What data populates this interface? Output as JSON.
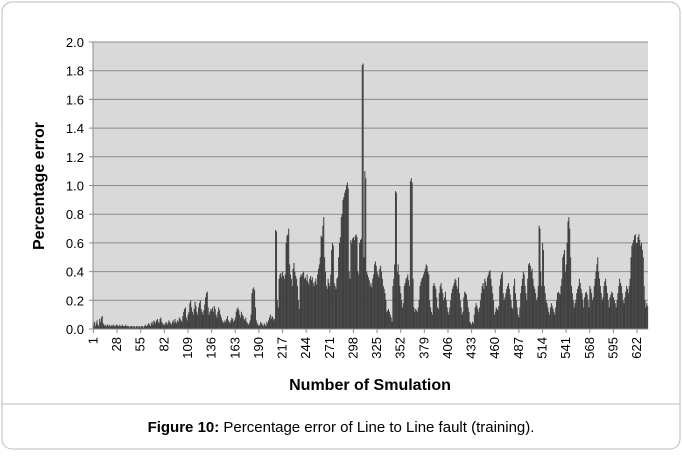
{
  "chart_data": {
    "type": "bar",
    "y_label": "Percentage error",
    "x_label": "Number of Smulation",
    "caption_bold": "Figure 10:",
    "caption": "Percentage error of Line to Line fault (training).",
    "color": "#404040",
    "ylim": [
      0,
      2
    ],
    "yticks": [
      {
        "value": 0,
        "label": "0.0"
      },
      0.2,
      0.4,
      0.6,
      0.8,
      {
        "value": 1,
        "label": "1.0"
      },
      1.2,
      1.4,
      1.6,
      1.8,
      {
        "value": 2,
        "label": "2.0"
      }
    ],
    "grid": true,
    "categories": [
      "1",
      null,
      null,
      null,
      null,
      null,
      null,
      null,
      null,
      null,
      null,
      null,
      null,
      null,
      null,
      null,
      null,
      null,
      null,
      null,
      null,
      null,
      null,
      null,
      null,
      null,
      null,
      "28",
      null,
      null,
      null,
      null,
      null,
      null,
      null,
      null,
      null,
      null,
      null,
      null,
      null,
      null,
      null,
      null,
      null,
      null,
      null,
      null,
      null,
      null,
      null,
      null,
      null,
      null,
      "55",
      null,
      null,
      null,
      null,
      null,
      null,
      null,
      null,
      null,
      null,
      null,
      null,
      null,
      null,
      null,
      null,
      null,
      null,
      null,
      null,
      null,
      null,
      null,
      null,
      null,
      null,
      "82",
      null,
      null,
      null,
      null,
      null,
      null,
      null,
      null,
      null,
      null,
      null,
      null,
      null,
      null,
      null,
      null,
      null,
      null,
      null,
      null,
      null,
      null,
      null,
      null,
      null,
      null,
      "109",
      null,
      null,
      null,
      null,
      null,
      null,
      null,
      null,
      null,
      null,
      null,
      null,
      null,
      null,
      null,
      null,
      null,
      null,
      null,
      null,
      null,
      null,
      null,
      null,
      null,
      null,
      "136",
      null,
      null,
      null,
      null,
      null,
      null,
      null,
      null,
      null,
      null,
      null,
      null,
      null,
      null,
      null,
      null,
      null,
      null,
      null,
      null,
      null,
      null,
      null,
      null,
      null,
      null,
      "163",
      null,
      null,
      null,
      null,
      null,
      null,
      null,
      null,
      null,
      null,
      null,
      null,
      null,
      null,
      null,
      null,
      null,
      null,
      null,
      null,
      null,
      null,
      null,
      null,
      null,
      null,
      "190",
      null,
      null,
      null,
      null,
      null,
      null,
      null,
      null,
      null,
      null,
      null,
      null,
      null,
      null,
      null,
      null,
      null,
      null,
      null,
      null,
      null,
      null,
      null,
      null,
      null,
      null,
      "217",
      null,
      null,
      null,
      null,
      null,
      null,
      null,
      null,
      null,
      null,
      null,
      null,
      null,
      null,
      null,
      null,
      null,
      null,
      null,
      null,
      null,
      null,
      null,
      null,
      null,
      null,
      "244",
      null,
      null,
      null,
      null,
      null,
      null,
      null,
      null,
      null,
      null,
      null,
      null,
      null,
      null,
      null,
      null,
      null,
      null,
      null,
      null,
      null,
      null,
      null,
      null,
      null,
      null,
      "271",
      null,
      null,
      null,
      null,
      null,
      null,
      null,
      null,
      null,
      null,
      null,
      null,
      null,
      null,
      null,
      null,
      null,
      null,
      null,
      null,
      null,
      null,
      null,
      null,
      null,
      null,
      "298",
      null,
      null,
      null,
      null,
      null,
      null,
      null,
      null,
      null,
      null,
      null,
      null,
      null,
      null,
      null,
      null,
      null,
      null,
      null,
      null,
      null,
      null,
      null,
      null,
      null,
      null,
      "325",
      null,
      null,
      null,
      null,
      null,
      null,
      null,
      null,
      null,
      null,
      null,
      null,
      null,
      null,
      null,
      null,
      null,
      null,
      null,
      null,
      null,
      null,
      null,
      null,
      null,
      null,
      "352",
      null,
      null,
      null,
      null,
      null,
      null,
      null,
      null,
      null,
      null,
      null,
      null,
      null,
      null,
      null,
      null,
      null,
      null,
      null,
      null,
      null,
      null,
      null,
      null,
      null,
      null,
      "379",
      null,
      null,
      null,
      null,
      null,
      null,
      null,
      null,
      null,
      null,
      null,
      null,
      null,
      null,
      null,
      null,
      null,
      null,
      null,
      null,
      null,
      null,
      null,
      null,
      null,
      null,
      "406",
      null,
      null,
      null,
      null,
      null,
      null,
      null,
      null,
      null,
      null,
      null,
      null,
      null,
      null,
      null,
      null,
      null,
      null,
      null,
      null,
      null,
      null,
      null,
      null,
      null,
      null,
      "433",
      null,
      null,
      null,
      null,
      null,
      null,
      null,
      null,
      null,
      null,
      null,
      null,
      null,
      null,
      null,
      null,
      null,
      null,
      null,
      null,
      null,
      null,
      null,
      null,
      null,
      null,
      "460",
      null,
      null,
      null,
      null,
      null,
      null,
      null,
      null,
      null,
      null,
      null,
      null,
      null,
      null,
      null,
      null,
      null,
      null,
      null,
      null,
      null,
      null,
      null,
      null,
      null,
      null,
      "487",
      null,
      null,
      null,
      null,
      null,
      null,
      null,
      null,
      null,
      null,
      null,
      null,
      null,
      null,
      null,
      null,
      null,
      null,
      null,
      null,
      null,
      null,
      null,
      null,
      null,
      null,
      "514",
      null,
      null,
      null,
      null,
      null,
      null,
      null,
      null,
      null,
      null,
      null,
      null,
      null,
      null,
      null,
      null,
      null,
      null,
      null,
      null,
      null,
      null,
      null,
      null,
      null,
      null,
      "541",
      null,
      null,
      null,
      null,
      null,
      null,
      null,
      null,
      null,
      null,
      null,
      null,
      null,
      null,
      null,
      null,
      null,
      null,
      null,
      null,
      null,
      null,
      null,
      null,
      null,
      null,
      "568",
      null,
      null,
      null,
      null,
      null,
      null,
      null,
      null,
      null,
      null,
      null,
      null,
      null,
      null,
      null,
      null,
      null,
      null,
      null,
      null,
      null,
      null,
      null,
      null,
      null,
      null,
      "595",
      null,
      null,
      null,
      null,
      null,
      null,
      null,
      null,
      null,
      null,
      null,
      null,
      null,
      null,
      null,
      null,
      null,
      null,
      null,
      null,
      null,
      null,
      null,
      null,
      null,
      null,
      "622",
      null,
      null,
      null,
      null,
      null,
      null,
      null,
      null,
      null,
      null,
      null,
      null
    ],
    "values": [
      0.03,
      0.05,
      0.02,
      0.04,
      0.06,
      0.03,
      0.02,
      0.07,
      0.05,
      0.08,
      0.09,
      0.04,
      0.03,
      0.02,
      0.03,
      0.02,
      0.03,
      0.02,
      0.03,
      0.02,
      0.02,
      0.03,
      0.02,
      0.03,
      0.02,
      0.02,
      0.03,
      0.03,
      0.02,
      0.02,
      0.03,
      0.02,
      0.02,
      0.03,
      0.02,
      0.02,
      0.02,
      0.03,
      0.02,
      0.02,
      0.02,
      0.01,
      0.02,
      0.02,
      0.02,
      0.01,
      0.02,
      0.02,
      0.01,
      0.02,
      0.02,
      0.01,
      0.02,
      0.02,
      0.01,
      0.02,
      0.02,
      0.01,
      0.02,
      0.03,
      0.02,
      0.02,
      0.03,
      0.04,
      0.03,
      0.02,
      0.04,
      0.05,
      0.03,
      0.06,
      0.05,
      0.04,
      0.06,
      0.07,
      0.05,
      0.04,
      0.07,
      0.08,
      0.05,
      0.04,
      0.03,
      0.03,
      0.04,
      0.05,
      0.03,
      0.04,
      0.06,
      0.05,
      0.04,
      0.03,
      0.05,
      0.06,
      0.04,
      0.07,
      0.05,
      0.04,
      0.06,
      0.05,
      0.08,
      0.07,
      0.06,
      0.05,
      0.09,
      0.12,
      0.14,
      0.15,
      0.08,
      0.06,
      0.1,
      0.12,
      0.18,
      0.2,
      0.15,
      0.12,
      0.1,
      0.14,
      0.19,
      0.16,
      0.12,
      0.1,
      0.15,
      0.18,
      0.2,
      0.14,
      0.12,
      0.1,
      0.13,
      0.17,
      0.22,
      0.25,
      0.26,
      0.15,
      0.1,
      0.12,
      0.14,
      0.13,
      0.15,
      0.12,
      0.16,
      0.14,
      0.1,
      0.08,
      0.12,
      0.15,
      0.13,
      0.1,
      0.08,
      0.06,
      0.05,
      0.04,
      0.06,
      0.05,
      0.07,
      0.09,
      0.06,
      0.05,
      0.04,
      0.06,
      0.08,
      0.07,
      0.05,
      0.06,
      0.08,
      0.12,
      0.14,
      0.15,
      0.13,
      0.1,
      0.08,
      0.12,
      0.1,
      0.09,
      0.07,
      0.06,
      0.08,
      0.05,
      0.04,
      0.03,
      0.04,
      0.06,
      0.1,
      0.25,
      0.28,
      0.29,
      0.27,
      0.15,
      0.06,
      0.04,
      0.03,
      0.02,
      0.03,
      0.05,
      0.04,
      0.03,
      0.02,
      0.04,
      0.03,
      0.02,
      0.05,
      0.04,
      0.06,
      0.08,
      0.1,
      0.07,
      0.09,
      0.08,
      0.06,
      0.07,
      0.69,
      0.68,
      0.2,
      0.15,
      0.35,
      0.38,
      0.39,
      0.36,
      0.4,
      0.37,
      0.35,
      0.38,
      0.6,
      0.65,
      0.66,
      0.7,
      0.45,
      0.38,
      0.35,
      0.3,
      0.42,
      0.46,
      0.4,
      0.37,
      0.35,
      0.3,
      0.2,
      0.14,
      0.36,
      0.38,
      0.37,
      0.39,
      0.4,
      0.35,
      0.36,
      0.34,
      0.38,
      0.33,
      0.31,
      0.35,
      0.37,
      0.34,
      0.36,
      0.32,
      0.3,
      0.33,
      0.35,
      0.31,
      0.38,
      0.42,
      0.45,
      0.5,
      0.65,
      0.64,
      0.72,
      0.78,
      0.5,
      0.4,
      0.3,
      0.28,
      0.35,
      0.32,
      0.3,
      0.38,
      0.55,
      0.6,
      0.58,
      0.32,
      0.3,
      0.28,
      0.35,
      0.36,
      0.5,
      0.6,
      0.64,
      0.78,
      0.8,
      0.9,
      0.92,
      0.95,
      0.97,
      1.0,
      1.02,
      0.98,
      0.4,
      0.35,
      0.62,
      0.6,
      0.63,
      0.64,
      0.62,
      0.65,
      0.66,
      0.64,
      0.4,
      0.38,
      0.6,
      0.62,
      0.63,
      1.84,
      1.85,
      0.5,
      1.1,
      1.05,
      0.4,
      0.38,
      0.36,
      0.34,
      0.3,
      0.32,
      0.29,
      0.35,
      0.38,
      0.45,
      0.47,
      0.44,
      0.4,
      0.38,
      0.36,
      0.42,
      0.44,
      0.4,
      0.35,
      0.3,
      0.28,
      0.25,
      0.2,
      0.12,
      0.13,
      0.14,
      0.12,
      0.1,
      0.08,
      0.05,
      0.3,
      0.35,
      0.45,
      0.96,
      0.95,
      0.4,
      0.45,
      0.38,
      0.3,
      0.25,
      0.2,
      0.15,
      0.18,
      0.3,
      0.32,
      0.35,
      0.36,
      0.38,
      0.34,
      0.3,
      1.03,
      1.05,
      1.02,
      0.35,
      0.15,
      0.12,
      0.14,
      0.13,
      0.12,
      0.15,
      0.2,
      0.3,
      0.33,
      0.35,
      0.36,
      0.38,
      0.4,
      0.42,
      0.45,
      0.44,
      0.4,
      0.38,
      0.2,
      0.15,
      0.12,
      0.1,
      0.3,
      0.32,
      0.3,
      0.28,
      0.22,
      0.15,
      0.14,
      0.25,
      0.3,
      0.32,
      0.28,
      0.25,
      0.2,
      0.22,
      0.26,
      0.2,
      0.15,
      0.12,
      0.1,
      0.15,
      0.2,
      0.25,
      0.28,
      0.3,
      0.32,
      0.35,
      0.34,
      0.3,
      0.28,
      0.36,
      0.25,
      0.2,
      0.15,
      0.1,
      0.12,
      0.22,
      0.26,
      0.25,
      0.24,
      0.2,
      0.15,
      0.12,
      0.05,
      0.04,
      0.03,
      0.05,
      0.04,
      0.1,
      0.15,
      0.18,
      0.16,
      0.14,
      0.12,
      0.15,
      0.2,
      0.25,
      0.3,
      0.32,
      0.28,
      0.35,
      0.33,
      0.3,
      0.36,
      0.38,
      0.4,
      0.41,
      0.35,
      0.3,
      0.25,
      0.2,
      0.1,
      0.12,
      0.15,
      0.14,
      0.13,
      0.16,
      0.3,
      0.35,
      0.38,
      0.4,
      0.25,
      0.2,
      0.22,
      0.25,
      0.28,
      0.3,
      0.32,
      0.28,
      0.24,
      0.2,
      0.15,
      0.14,
      0.3,
      0.35,
      0.25,
      0.2,
      0.15,
      0.1,
      0.08,
      0.15,
      0.25,
      0.3,
      0.35,
      0.4,
      0.38,
      0.3,
      0.25,
      0.2,
      0.35,
      0.45,
      0.46,
      0.44,
      0.4,
      0.42,
      0.35,
      0.3,
      0.28,
      0.25,
      0.2,
      0.22,
      0.3,
      0.72,
      0.7,
      0.4,
      0.3,
      0.6,
      0.55,
      0.3,
      0.25,
      0.2,
      0.18,
      0.15,
      0.12,
      0.1,
      0.15,
      0.18,
      0.16,
      0.14,
      0.12,
      0.1,
      0.15,
      0.2,
      0.25,
      0.26,
      0.25,
      0.24,
      0.3,
      0.35,
      0.5,
      0.52,
      0.55,
      0.4,
      0.45,
      0.6,
      0.75,
      0.78,
      0.7,
      0.5,
      0.3,
      0.25,
      0.2,
      0.15,
      0.18,
      0.2,
      0.25,
      0.28,
      0.3,
      0.35,
      0.32,
      0.28,
      0.25,
      0.2,
      0.15,
      0.22,
      0.25,
      0.26,
      0.24,
      0.2,
      0.15,
      0.3,
      0.28,
      0.25,
      0.2,
      0.22,
      0.3,
      0.35,
      0.4,
      0.45,
      0.5,
      0.4,
      0.35,
      0.3,
      0.25,
      0.2,
      0.22,
      0.3,
      0.33,
      0.35,
      0.3,
      0.25,
      0.2,
      0.15,
      0.22,
      0.24,
      0.26,
      0.25,
      0.22,
      0.2,
      0.18,
      0.15,
      0.2,
      0.25,
      0.3,
      0.35,
      0.32,
      0.3,
      0.25,
      0.2,
      0.18,
      0.22,
      0.26,
      0.3,
      0.28,
      0.25,
      0.3,
      0.35,
      0.5,
      0.58,
      0.6,
      0.62,
      0.65,
      0.66,
      0.6,
      0.6,
      0.64,
      0.66,
      0.62,
      0.58,
      0.6,
      0.55,
      0.5,
      0.3,
      0.2,
      0.15,
      0.18,
      0.16
    ]
  }
}
